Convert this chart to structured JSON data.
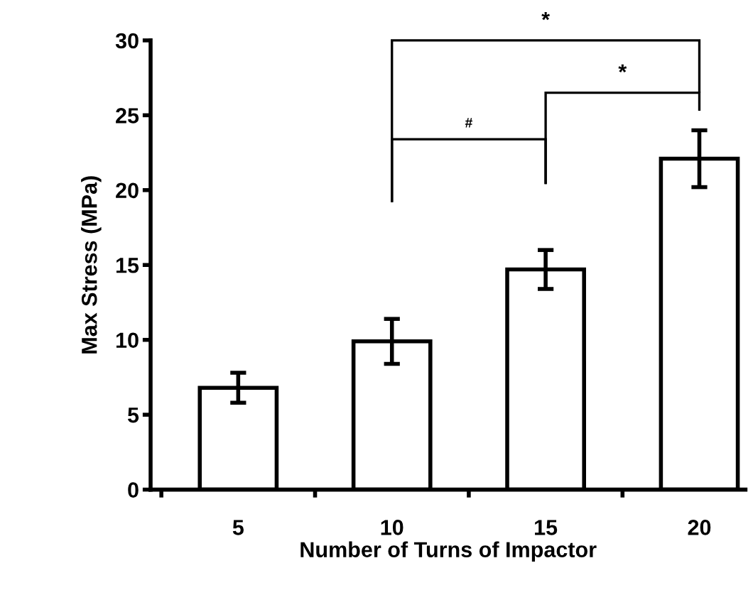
{
  "chart_data": {
    "type": "bar",
    "xlabel": "Number of Turns of Impactor",
    "ylabel": "Max Stress (MPa)",
    "categories": [
      "5",
      "10",
      "15",
      "20"
    ],
    "values": [
      6.8,
      9.9,
      14.7,
      22.1
    ],
    "errors": [
      1.0,
      1.5,
      1.3,
      1.9
    ],
    "color": "#ffffff",
    "ylim": [
      0,
      30
    ],
    "yticks": [
      0,
      5,
      10,
      15,
      20,
      25,
      30
    ],
    "grid": false,
    "annotations": [
      "*",
      "*",
      "#"
    ]
  }
}
